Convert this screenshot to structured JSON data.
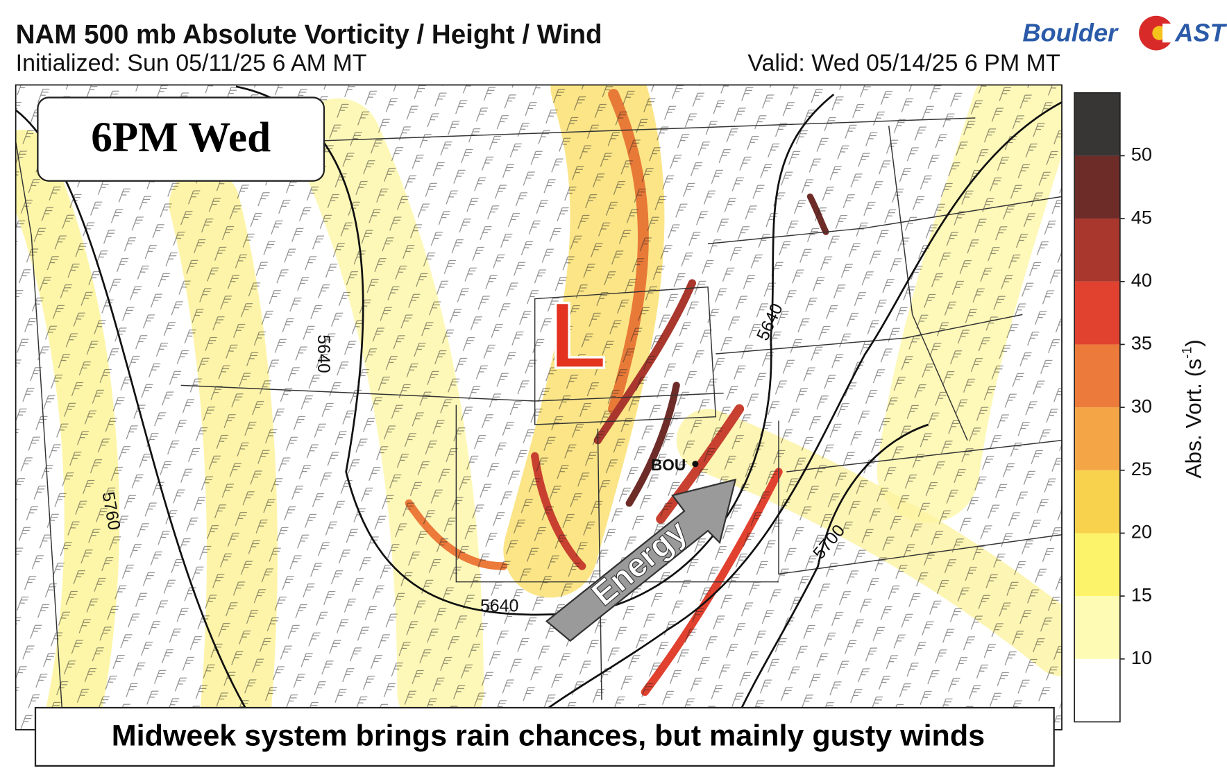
{
  "header": {
    "title": "NAM 500 mb Absolute Vorticity / Height / Wind",
    "initialized": "Initialized: Sun 05/11/25 6 AM MT",
    "valid": "Valid: Wed 05/14/25 6 PM MT"
  },
  "logo": {
    "left": "Boulder",
    "right": "AST"
  },
  "map": {
    "time_label": "6PM Wed",
    "low_marker": "L",
    "station": "BOU",
    "arrow_label": "Energy",
    "contour_labels": [
      "5640",
      "5640",
      "5640",
      "5700",
      "5760"
    ],
    "caption": "Midweek system brings rain chances, but mainly gusty winds"
  },
  "colorbar": {
    "label": {
      "text": "Abs. Vort. (s",
      "superscript": "-1",
      "close": ")"
    },
    "ticks": [
      10,
      15,
      20,
      25,
      30,
      35,
      40,
      45,
      50
    ],
    "colors": [
      "#ffffff",
      "#fefcb4",
      "#fdf36a",
      "#f8d24c",
      "#f4a646",
      "#ec7a3a",
      "#e1412f",
      "#a9372d",
      "#6d2c28",
      "#383535"
    ]
  }
}
